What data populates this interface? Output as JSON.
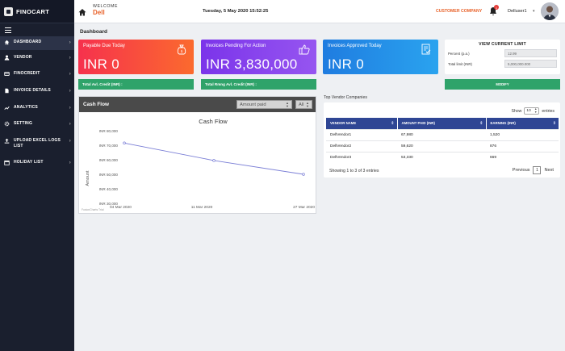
{
  "brand": {
    "name": "FINOCART"
  },
  "sidebar": {
    "items": [
      {
        "label": "DASHBOARD",
        "icon": "home-icon"
      },
      {
        "label": "VENDOR",
        "icon": "user-icon"
      },
      {
        "label": "FINOCREDIT",
        "icon": "credit-icon"
      },
      {
        "label": "INVOICE DETAILS",
        "icon": "document-icon"
      },
      {
        "label": "ANALYTICS",
        "icon": "chart-icon"
      },
      {
        "label": "SETTING",
        "icon": "gear-icon"
      },
      {
        "label": "UPLOAD EXCEL LOGS LIST",
        "icon": "upload-icon"
      },
      {
        "label": "HOLIDAY LIST",
        "icon": "calendar-icon"
      }
    ]
  },
  "header": {
    "welcome_label": "WELCOME",
    "welcome_name": "Dell",
    "datetime": "Tuesday, 5 May 2020 15:52:25",
    "company": "CUSTOMER COMPANY",
    "notification_count": "1",
    "username": "Delluser1"
  },
  "breadcrumb": "Dashboard",
  "cards": [
    {
      "title": "Payable Due Today",
      "value": "INR 0",
      "footer": "Total Avl. Credit (INR) :",
      "icon": "money-bag-icon"
    },
    {
      "title": "Invoices Pending For Action",
      "value": "INR 3,830,000",
      "footer": "Total Rmng Avl. Credit (INR) :",
      "icon": "thumbs-up-icon"
    },
    {
      "title": "Invoices Approved Today",
      "value": "INR 0",
      "icon": "approved-doc-icon"
    }
  ],
  "limit": {
    "title": "VIEW CURRENT LIMIT",
    "percent_label": "Percent (p.a.)",
    "percent_value": "12.99",
    "total_label": "Total limit (INR)",
    "total_value": "5,000,000.000",
    "modify_label": "MODIFY"
  },
  "cashflow": {
    "title": "Cash Flow",
    "select1": "Amount paid",
    "select2": "All",
    "credits": "FusionCharts Trial"
  },
  "chart_data": {
    "type": "line",
    "title": "Cash Flow",
    "xlabel": "",
    "ylabel": "Amount",
    "categories": [
      "04 Mar 2020",
      "11 Mar 2020",
      "27 Mar 2020"
    ],
    "values": [
      71500,
      59500,
      50000
    ],
    "yticks": [
      "INR 80,000",
      "INR 70,000",
      "INR 60,000",
      "INR 50,000",
      "INR 40,000",
      "INR 30,000"
    ],
    "ylim": [
      30000,
      80000
    ],
    "grid": false
  },
  "vendors": {
    "section_title": "Top Vendor Companies",
    "show_label": "Show",
    "show_value": "10",
    "entries_label": "entries",
    "columns": [
      "VENDOR NAME",
      "AMOUNT PAID (INR)",
      "EARNING (INR)"
    ],
    "rows": [
      [
        "DellVendor1",
        "67,980",
        "1,520"
      ],
      [
        "DellVendor2",
        "59,620",
        "876"
      ],
      [
        "DellVendor3",
        "53,330",
        "669"
      ]
    ],
    "info": "Showing 1 to 3 of 3 entries",
    "prev_label": "Previous",
    "page": "1",
    "next_label": "Next"
  },
  "colors": {
    "sidebar": "#1a1f2e",
    "accent_orange": "#e8622a",
    "green": "#2fa36a",
    "table_header": "#2f4694"
  }
}
